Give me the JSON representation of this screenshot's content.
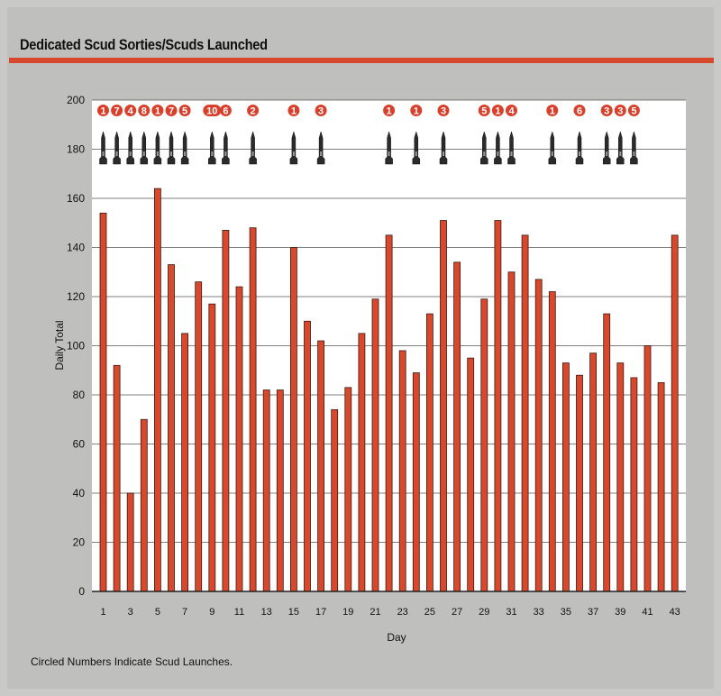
{
  "title": "Dedicated Scud Sorties/Scuds Launched",
  "footnote": "Circled Numbers Indicate Scud Launches.",
  "colors": {
    "bar": "#d8482c",
    "bar_edge": "#3a1a12",
    "badge": "#d8402c",
    "plot_bg": "#ffffff",
    "rule": "#d7482c"
  },
  "chart_data": {
    "type": "bar",
    "title": "Dedicated Scud Sorties/Scuds Launched",
    "xlabel": "Day",
    "ylabel": "Daily Total",
    "ylim": [
      0,
      200
    ],
    "yticks": [
      0,
      20,
      40,
      60,
      80,
      100,
      120,
      140,
      160,
      180,
      200
    ],
    "xtick_labels": [
      "1",
      "3",
      "5",
      "7",
      "9",
      "11",
      "13",
      "15",
      "17",
      "19",
      "21",
      "23",
      "25",
      "27",
      "29",
      "31",
      "33",
      "35",
      "37",
      "39",
      "41",
      "43"
    ],
    "grid": true,
    "categories": [
      "1",
      "2",
      "3",
      "4",
      "5",
      "6",
      "7",
      "8",
      "9",
      "10",
      "11",
      "12",
      "13",
      "14",
      "15",
      "16",
      "17",
      "18",
      "19",
      "20",
      "21",
      "22",
      "23",
      "24",
      "25",
      "26",
      "27",
      "28",
      "29",
      "30",
      "31",
      "32",
      "33",
      "34",
      "35",
      "36",
      "37",
      "38",
      "39",
      "40",
      "41",
      "42",
      "43"
    ],
    "values": [
      154,
      92,
      40,
      70,
      164,
      133,
      105,
      126,
      117,
      147,
      124,
      148,
      82,
      82,
      140,
      110,
      102,
      74,
      83,
      105,
      119,
      145,
      98,
      89,
      113,
      151,
      134,
      95,
      119,
      151,
      130,
      145,
      127,
      122,
      93,
      88,
      97,
      113,
      93,
      87,
      100,
      85,
      145
    ],
    "scud_launches": [
      {
        "day": 1,
        "count": 1
      },
      {
        "day": 2,
        "count": 7
      },
      {
        "day": 3,
        "count": 4
      },
      {
        "day": 4,
        "count": 8
      },
      {
        "day": 5,
        "count": 1
      },
      {
        "day": 6,
        "count": 7
      },
      {
        "day": 7,
        "count": 5
      },
      {
        "day": 9,
        "count": 10
      },
      {
        "day": 10,
        "count": 6
      },
      {
        "day": 12,
        "count": 2
      },
      {
        "day": 15,
        "count": 1
      },
      {
        "day": 17,
        "count": 3
      },
      {
        "day": 22,
        "count": 1
      },
      {
        "day": 24,
        "count": 1
      },
      {
        "day": 26,
        "count": 3
      },
      {
        "day": 29,
        "count": 5
      },
      {
        "day": 30,
        "count": 1
      },
      {
        "day": 31,
        "count": 4
      },
      {
        "day": 34,
        "count": 1
      },
      {
        "day": 36,
        "count": 6
      },
      {
        "day": 38,
        "count": 3
      },
      {
        "day": 39,
        "count": 3
      },
      {
        "day": 40,
        "count": 5
      }
    ]
  }
}
